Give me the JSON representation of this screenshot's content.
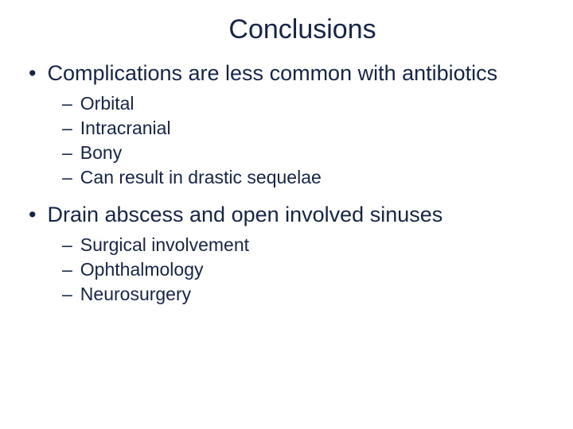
{
  "colors": {
    "text": "#15254a",
    "background": "#ffffff"
  },
  "typography": {
    "title_fontsize": 34,
    "l1_fontsize": 27,
    "l2_fontsize": 23,
    "font_family": "Arial"
  },
  "markers": {
    "l1": "•",
    "l2": "–"
  },
  "title": "Conclusions",
  "items": [
    {
      "text": "Complications are less common with antibiotics",
      "sub": [
        "Orbital",
        "Intracranial",
        "Bony",
        "Can result in drastic sequelae"
      ]
    },
    {
      "text": "Drain abscess and open involved sinuses",
      "sub": [
        "Surgical involvement",
        "Ophthalmology",
        "Neurosurgery"
      ]
    }
  ]
}
